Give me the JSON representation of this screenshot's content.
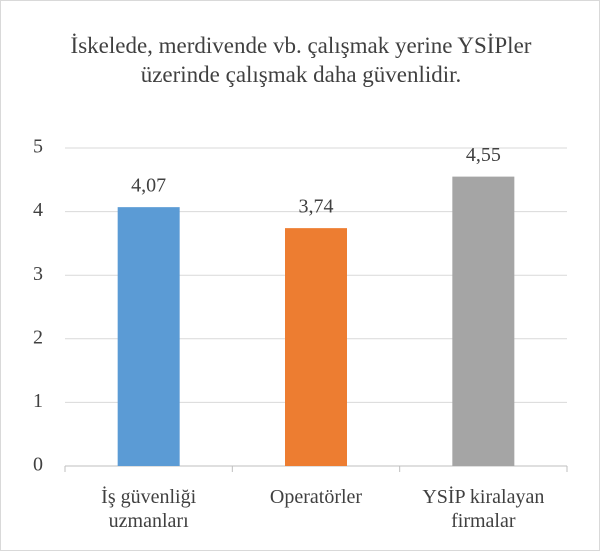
{
  "chart_data": {
    "type": "bar",
    "title": "İskelede, merdivende vb. çalışmak yerine YSİPler üzerinde çalışmak daha güvenlidir.",
    "categories": [
      "İş güvenliği uzmanları",
      "Operatörler",
      "YSİP kiralayan firmalar"
    ],
    "values": [
      4.07,
      3.74,
      4.55
    ],
    "value_labels": [
      "4,07",
      "3,74",
      "4,55"
    ],
    "colors": [
      "#5b9bd5",
      "#ed7d31",
      "#a5a5a5"
    ],
    "ylim": [
      0,
      5
    ],
    "yticks": [
      0,
      1,
      2,
      3,
      4,
      5
    ],
    "grid": true
  }
}
